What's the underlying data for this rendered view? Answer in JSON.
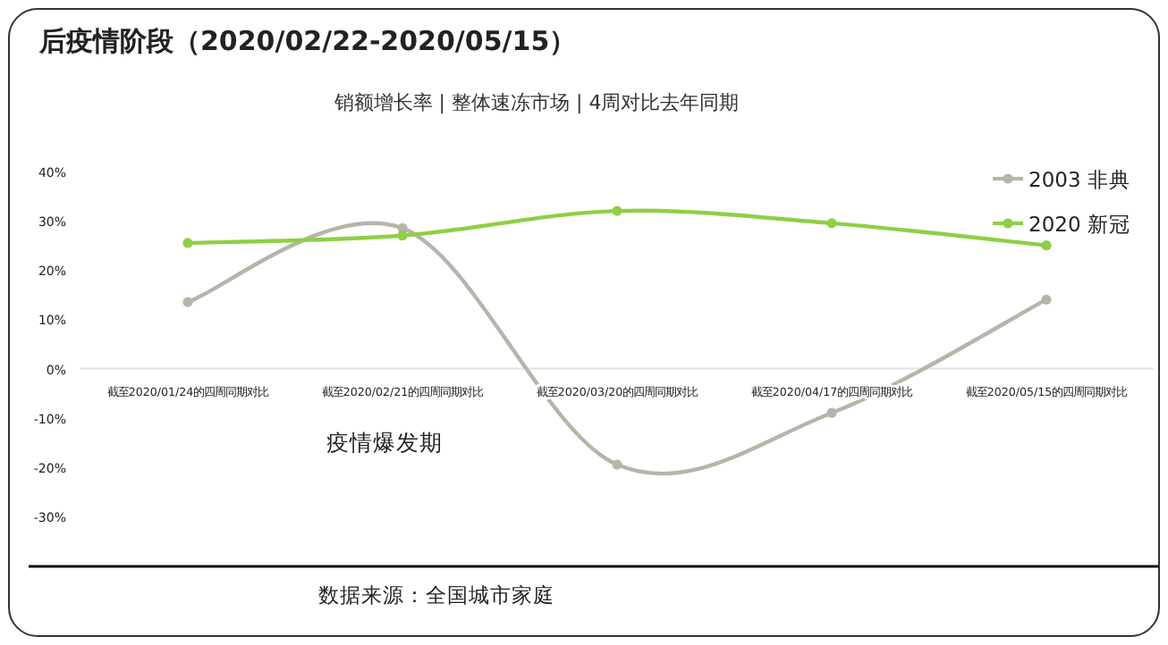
{
  "chart_data": {
    "type": "line",
    "title": "后疫情阶段（2020/02/22-2020/05/15）",
    "subtitle": "销额增长率 | 整体速冻市场 | 4周对比去年同期",
    "categories": [
      "截至2020/01/24的四周同期对比",
      "截至2020/02/21的四周同期对比",
      "截至2020/03/20的四周同期对比",
      "截至2020/04/17的四周同期对比",
      "截至2020/05/15的四周同期对比"
    ],
    "series": [
      {
        "name": "2003 非典",
        "color": "#b5b5aa",
        "values": [
          13.5,
          28.5,
          -19.5,
          -9,
          14
        ]
      },
      {
        "name": "2020 新冠",
        "color": "#8dd044",
        "values": [
          25.5,
          27,
          32,
          29.5,
          25
        ]
      }
    ],
    "ylim": [
      -30,
      40
    ],
    "yticks": [
      {
        "value": 40,
        "label": "40%"
      },
      {
        "value": 30,
        "label": "30%"
      },
      {
        "value": 20,
        "label": "20%"
      },
      {
        "value": 10,
        "label": "10%"
      },
      {
        "value": 0,
        "label": "0%"
      },
      {
        "value": -10,
        "label": "-10%"
      },
      {
        "value": -20,
        "label": "-20%"
      },
      {
        "value": -30,
        "label": "-30%"
      }
    ],
    "legend": "top right",
    "marker": "circle",
    "annotations": [
      "疫情爆发期",
      "数据来源：全国城市家庭"
    ]
  }
}
